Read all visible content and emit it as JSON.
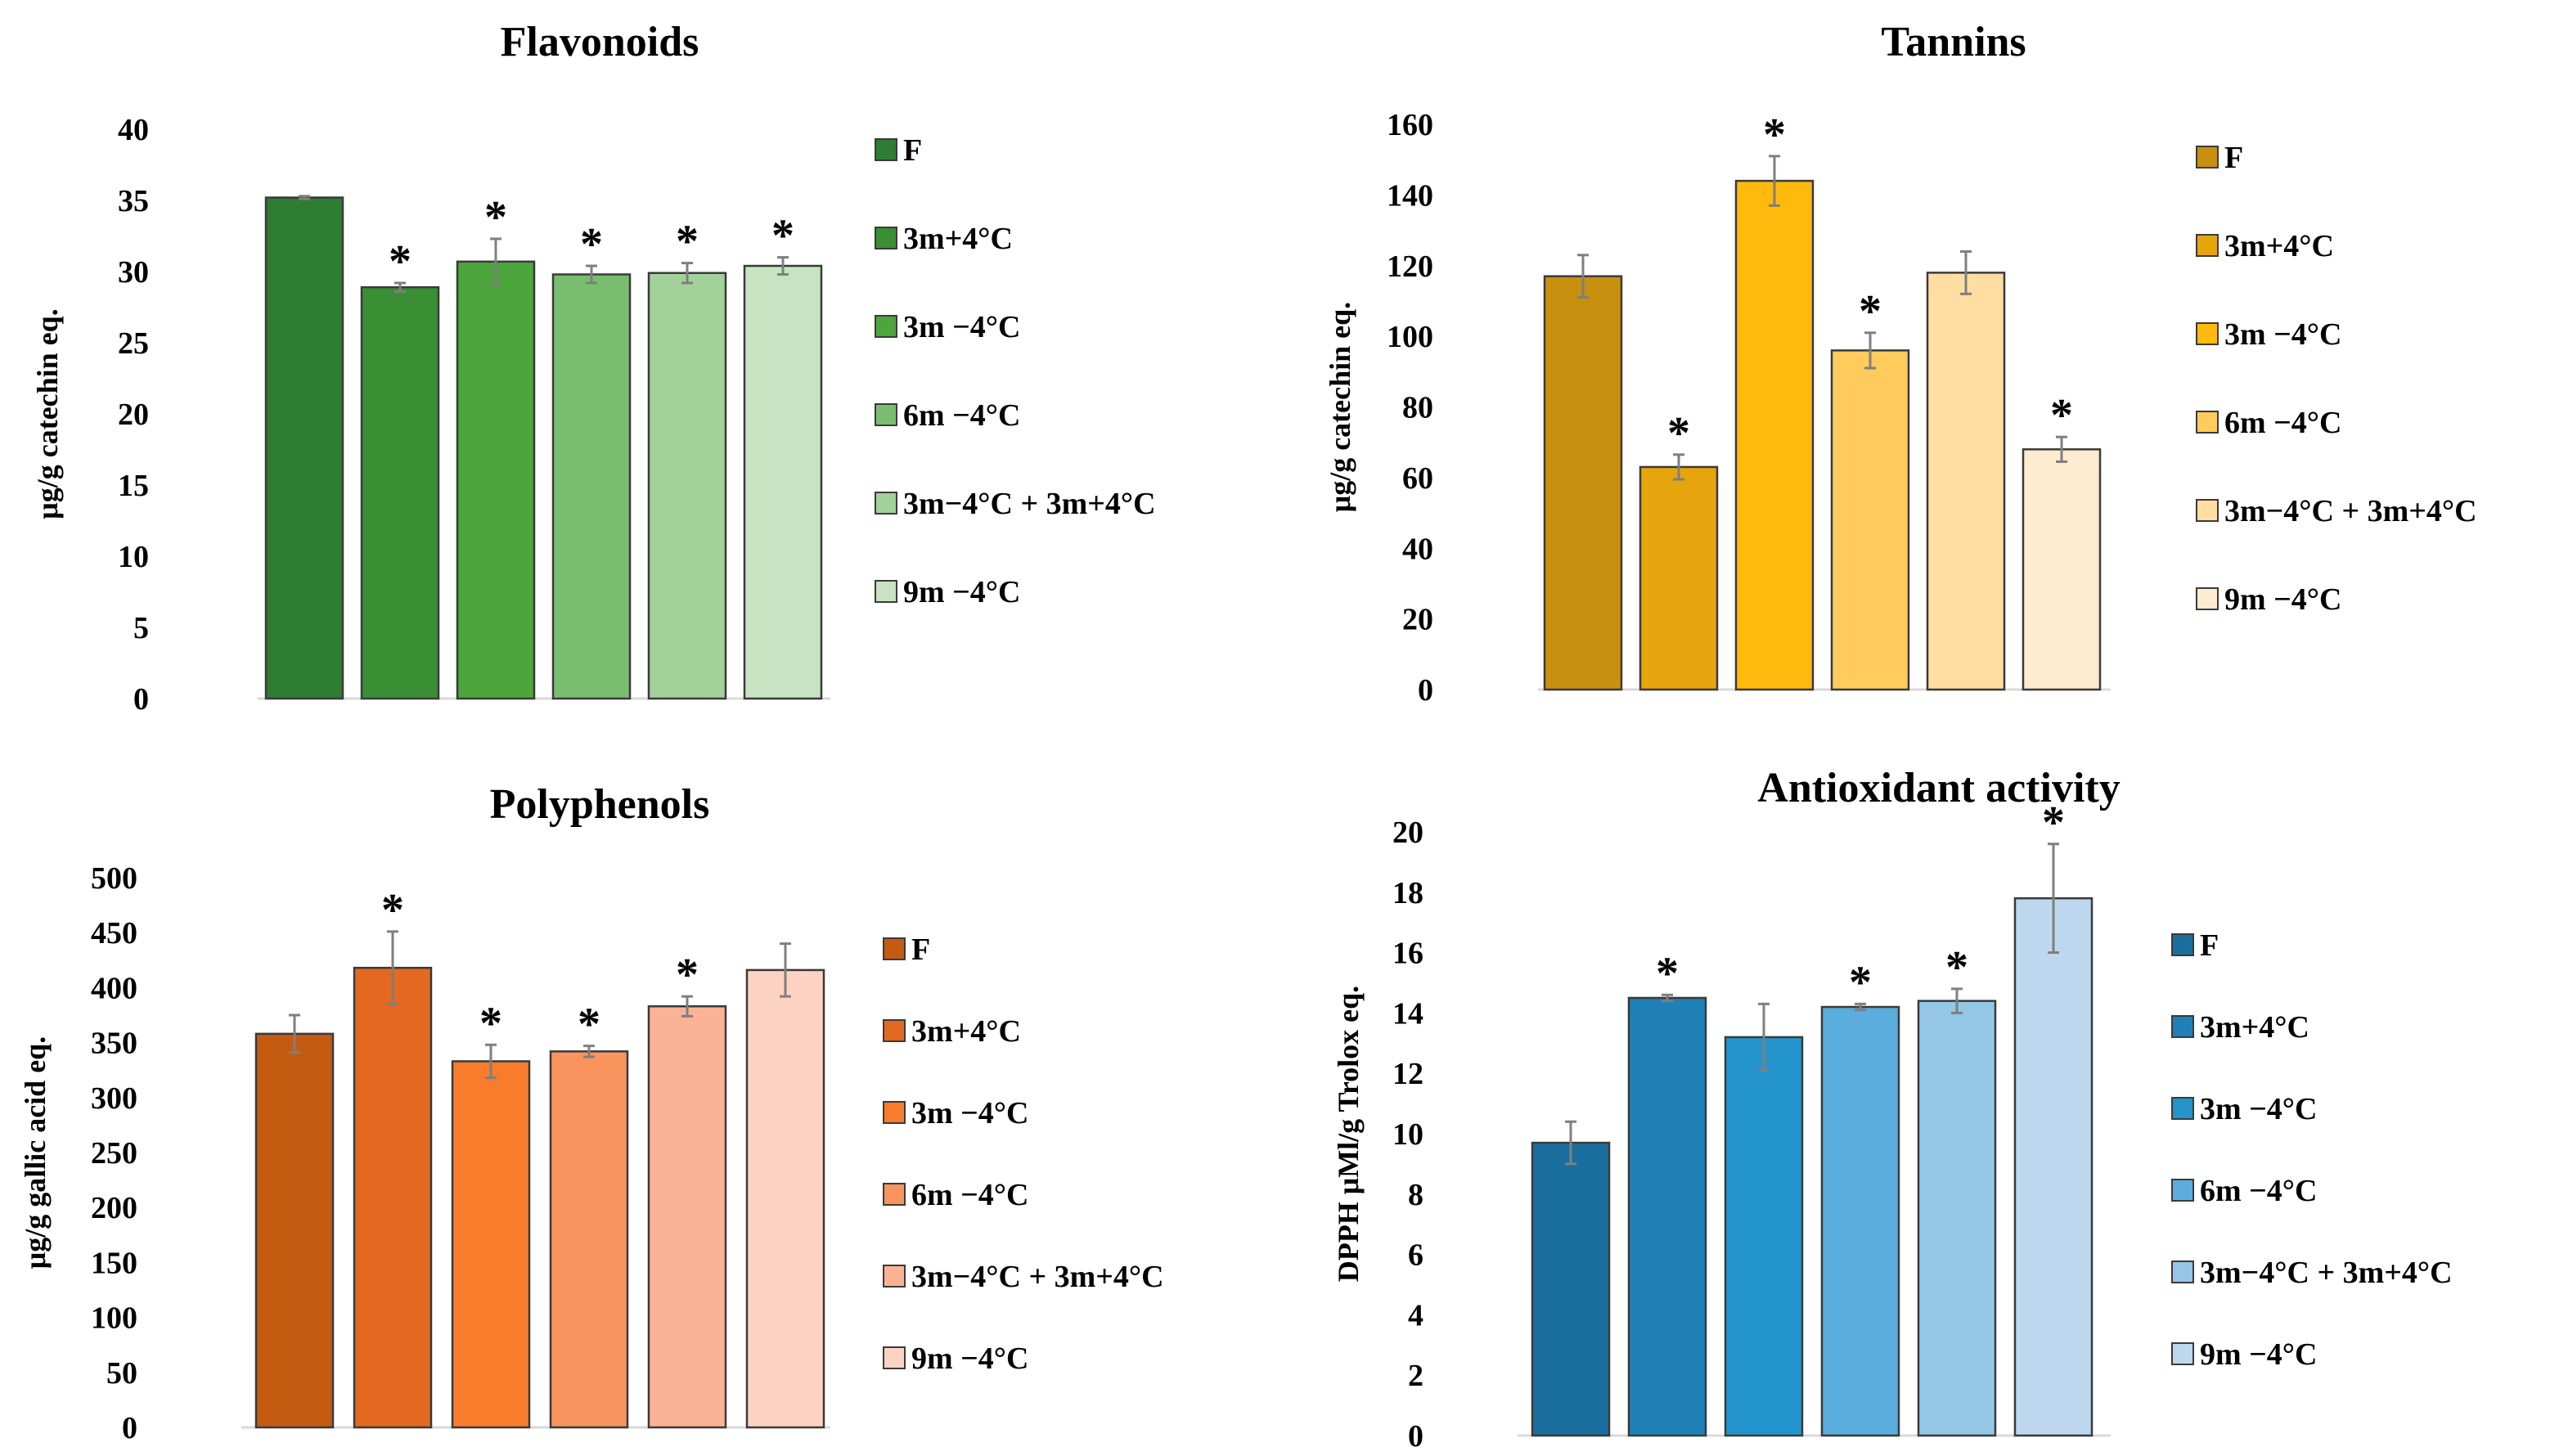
{
  "chart_data": [
    {
      "type": "bar",
      "title": "Flavonoids",
      "ylabel": "μg/g catechin eq.",
      "ylim": [
        0,
        40
      ],
      "yticks": [
        0,
        5,
        10,
        15,
        20,
        25,
        30,
        35,
        40
      ],
      "categories": [
        "F",
        "3m+4°C",
        "3m −4°C",
        "6m −4°C",
        "3m−4°C + 3m+4°C",
        "9m −4°C"
      ],
      "values": [
        35.2,
        28.9,
        30.7,
        29.8,
        29.9,
        30.4
      ],
      "errors": [
        0.1,
        0.3,
        1.6,
        0.6,
        0.7,
        0.6
      ],
      "significant": [
        false,
        true,
        true,
        true,
        true,
        true
      ],
      "colors": [
        "#2E7D32",
        "#3A8F35",
        "#4CA63C",
        "#79BE6E",
        "#A3D19A",
        "#C7E3C1"
      ],
      "legend_position": "right"
    },
    {
      "type": "bar",
      "title": "Tannins",
      "ylabel": "μg/g catechin eq.",
      "ylim": [
        0,
        160
      ],
      "yticks": [
        0,
        20,
        40,
        60,
        80,
        100,
        120,
        140,
        160
      ],
      "categories": [
        "F",
        "3m+4°C",
        "3m −4°C",
        "6m −4°C",
        "3m−4°C + 3m+4°C",
        "9m −4°C"
      ],
      "values": [
        117,
        63,
        144,
        96,
        118,
        68
      ],
      "errors": [
        6,
        3.5,
        7,
        5,
        6,
        3.5
      ],
      "significant": [
        false,
        true,
        true,
        true,
        false,
        true
      ],
      "colors": [
        "#C8900F",
        "#E6A50C",
        "#FFBA0B",
        "#FFCB5C",
        "#FFDDA3",
        "#FFEBCF"
      ],
      "legend_position": "right"
    },
    {
      "type": "bar",
      "title": "Polyphenols",
      "ylabel": "μg/g gallic acid eq.",
      "ylim": [
        0,
        500
      ],
      "yticks": [
        0,
        50,
        100,
        150,
        200,
        250,
        300,
        350,
        400,
        450,
        500
      ],
      "categories": [
        "F",
        "3m+4°C",
        "3m −4°C",
        "6m −4°C",
        "3m−4°C + 3m+4°C",
        "9m −4°C"
      ],
      "values": [
        358,
        418,
        333,
        342,
        383,
        416
      ],
      "errors": [
        17,
        33,
        15,
        5,
        9,
        24
      ],
      "significant": [
        false,
        true,
        true,
        true,
        true,
        false
      ],
      "colors": [
        "#C55A11",
        "#E2691F",
        "#F97B2C",
        "#F9945E",
        "#FBB395",
        "#FCD3C3"
      ],
      "legend_position": "right"
    },
    {
      "type": "bar",
      "title": "Antioxidant activity",
      "ylabel": "DPPH μMl/g Trolox eq.",
      "ylim": [
        0,
        20
      ],
      "yticks": [
        0,
        2,
        4,
        6,
        8,
        10,
        12,
        14,
        16,
        18,
        20
      ],
      "categories": [
        "F",
        "3m+4°C",
        "3m −4°C",
        "6m −4°C",
        "3m−4°C + 3m+4°C",
        "9m −4°C"
      ],
      "values": [
        9.7,
        14.5,
        13.2,
        14.2,
        14.4,
        17.8
      ],
      "errors": [
        0.7,
        0.1,
        1.1,
        0.1,
        0.4,
        1.8
      ],
      "significant": [
        false,
        true,
        false,
        true,
        true,
        true
      ],
      "colors": [
        "#1A6E9E",
        "#1F81B7",
        "#2494CD",
        "#5AADDD",
        "#94C6E6",
        "#BDD8EE"
      ],
      "legend_position": "right"
    }
  ],
  "marker": "*"
}
